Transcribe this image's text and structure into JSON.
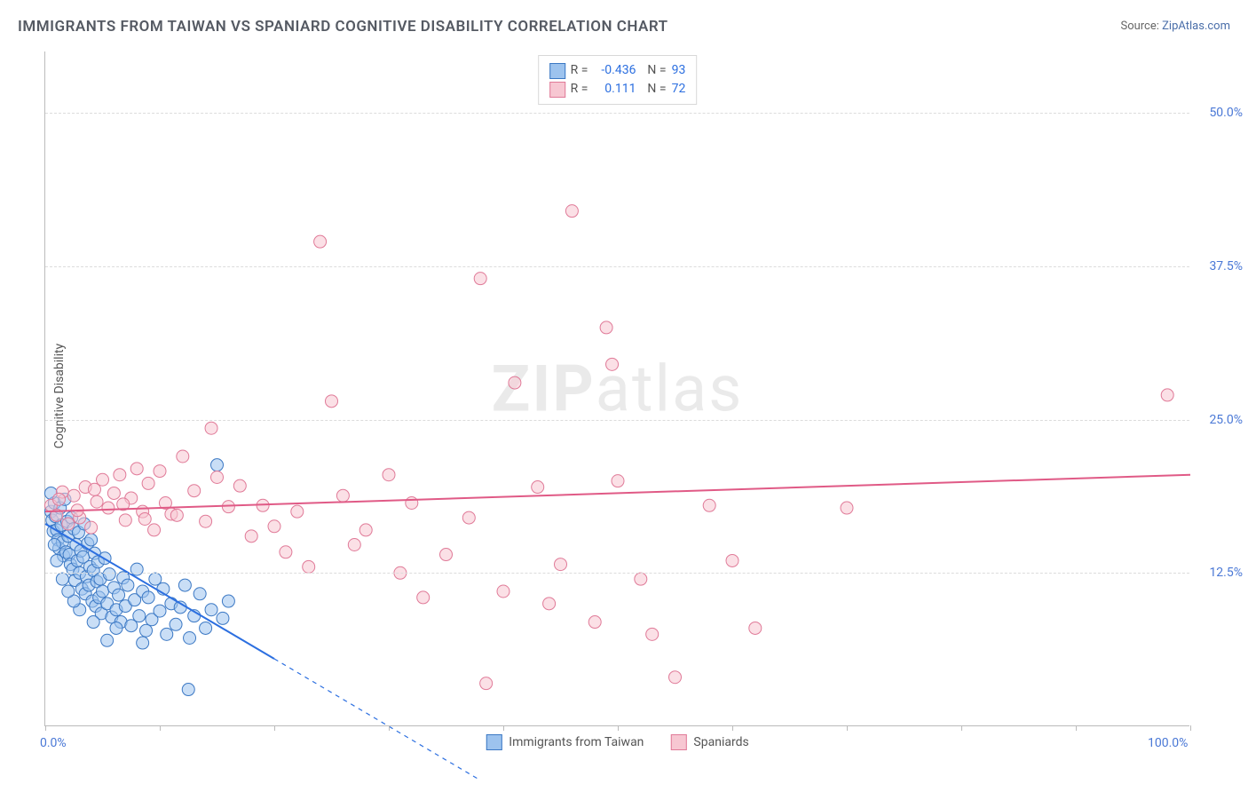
{
  "title": "IMMIGRANTS FROM TAIWAN VS SPANIARD COGNITIVE DISABILITY CORRELATION CHART",
  "source_prefix": "Source: ",
  "source_name": "ZipAtlas.com",
  "ylabel": "Cognitive Disability",
  "watermark_bold": "ZIP",
  "watermark_light": "atlas",
  "chart": {
    "type": "scatter",
    "background_color": "#ffffff",
    "grid_color": "#dcdcdc",
    "axis_color": "#bbbbbb",
    "tick_label_color": "#4a78d6",
    "xlim": [
      0,
      100
    ],
    "ylim": [
      0,
      55
    ],
    "xtick_positions": [
      0,
      10,
      20,
      30,
      40,
      50,
      60,
      70,
      80,
      90,
      100
    ],
    "xtick_labels": {
      "0": "0.0%",
      "100": "100.0%"
    },
    "ytick_positions": [
      12.5,
      25.0,
      37.5,
      50.0
    ],
    "ytick_labels": [
      "12.5%",
      "25.0%",
      "37.5%",
      "50.0%"
    ],
    "marker_radius": 7,
    "marker_opacity": 0.55,
    "series": [
      {
        "name": "Immigrants from Taiwan",
        "fill_color": "#9dc3ee",
        "stroke_color": "#3b78c4",
        "R": "-0.436",
        "N": "93",
        "trend": {
          "x1": 0,
          "y1": 16.5,
          "x2": 20,
          "y2": 5.5,
          "extrapolate_to_x": 38,
          "color": "#2c6fe0",
          "width": 2
        },
        "points": [
          [
            0.5,
            17.5
          ],
          [
            0.6,
            16.8
          ],
          [
            0.7,
            15.9
          ],
          [
            0.8,
            18.2
          ],
          [
            0.9,
            17.1
          ],
          [
            1.0,
            16.0
          ],
          [
            1.1,
            15.2
          ],
          [
            1.2,
            14.5
          ],
          [
            1.3,
            17.8
          ],
          [
            1.4,
            16.4
          ],
          [
            1.5,
            15.0
          ],
          [
            1.6,
            13.9
          ],
          [
            1.7,
            18.5
          ],
          [
            1.8,
            14.2
          ],
          [
            1.9,
            16.7
          ],
          [
            2.0,
            15.5
          ],
          [
            2.1,
            14.0
          ],
          [
            2.2,
            13.2
          ],
          [
            2.3,
            17.0
          ],
          [
            2.4,
            12.8
          ],
          [
            2.5,
            16.1
          ],
          [
            2.6,
            11.9
          ],
          [
            2.7,
            14.8
          ],
          [
            2.8,
            13.5
          ],
          [
            2.9,
            15.8
          ],
          [
            3.0,
            12.5
          ],
          [
            3.1,
            14.3
          ],
          [
            3.2,
            11.2
          ],
          [
            3.3,
            13.8
          ],
          [
            3.4,
            16.5
          ],
          [
            3.5,
            10.8
          ],
          [
            3.6,
            12.2
          ],
          [
            3.7,
            14.9
          ],
          [
            3.8,
            11.5
          ],
          [
            3.9,
            13.0
          ],
          [
            4.0,
            15.2
          ],
          [
            4.1,
            10.2
          ],
          [
            4.2,
            12.7
          ],
          [
            4.3,
            14.1
          ],
          [
            4.4,
            9.8
          ],
          [
            4.5,
            11.8
          ],
          [
            4.6,
            13.4
          ],
          [
            4.7,
            10.5
          ],
          [
            4.8,
            12.0
          ],
          [
            4.9,
            9.2
          ],
          [
            5.0,
            11.0
          ],
          [
            5.2,
            13.7
          ],
          [
            5.4,
            10.0
          ],
          [
            5.6,
            12.4
          ],
          [
            5.8,
            8.9
          ],
          [
            6.0,
            11.3
          ],
          [
            6.2,
            9.5
          ],
          [
            6.4,
            10.7
          ],
          [
            6.6,
            8.5
          ],
          [
            6.8,
            12.1
          ],
          [
            7.0,
            9.8
          ],
          [
            7.2,
            11.5
          ],
          [
            7.5,
            8.2
          ],
          [
            7.8,
            10.3
          ],
          [
            8.0,
            12.8
          ],
          [
            8.2,
            9.0
          ],
          [
            8.5,
            11.0
          ],
          [
            8.8,
            7.8
          ],
          [
            9.0,
            10.5
          ],
          [
            9.3,
            8.7
          ],
          [
            9.6,
            12.0
          ],
          [
            10.0,
            9.4
          ],
          [
            10.3,
            11.2
          ],
          [
            10.6,
            7.5
          ],
          [
            11.0,
            10.0
          ],
          [
            11.4,
            8.3
          ],
          [
            11.8,
            9.7
          ],
          [
            12.2,
            11.5
          ],
          [
            12.6,
            7.2
          ],
          [
            13.0,
            9.0
          ],
          [
            13.5,
            10.8
          ],
          [
            14.0,
            8.0
          ],
          [
            14.5,
            9.5
          ],
          [
            15.0,
            21.3
          ],
          [
            5.4,
            7.0
          ],
          [
            8.5,
            6.8
          ],
          [
            6.2,
            8.0
          ],
          [
            15.5,
            8.8
          ],
          [
            16.0,
            10.2
          ],
          [
            4.2,
            8.5
          ],
          [
            3.0,
            9.5
          ],
          [
            2.5,
            10.2
          ],
          [
            2.0,
            11.0
          ],
          [
            1.5,
            12.0
          ],
          [
            1.0,
            13.5
          ],
          [
            0.8,
            14.8
          ],
          [
            12.5,
            3.0
          ],
          [
            0.5,
            19.0
          ]
        ]
      },
      {
        "name": "Spaniards",
        "fill_color": "#f7c7d2",
        "stroke_color": "#e07a98",
        "R": "0.111",
        "N": "72",
        "trend": {
          "x1": 0,
          "y1": 17.5,
          "x2": 100,
          "y2": 20.5,
          "color": "#e05a86",
          "width": 2
        },
        "points": [
          [
            0.5,
            18.0
          ],
          [
            1.0,
            17.2
          ],
          [
            1.5,
            19.1
          ],
          [
            2.0,
            16.5
          ],
          [
            2.5,
            18.8
          ],
          [
            3.0,
            17.0
          ],
          [
            3.5,
            19.5
          ],
          [
            4.0,
            16.2
          ],
          [
            4.5,
            18.3
          ],
          [
            5.0,
            20.1
          ],
          [
            5.5,
            17.8
          ],
          [
            6.0,
            19.0
          ],
          [
            6.5,
            20.5
          ],
          [
            7.0,
            16.8
          ],
          [
            7.5,
            18.6
          ],
          [
            8.0,
            21.0
          ],
          [
            8.5,
            17.5
          ],
          [
            9.0,
            19.8
          ],
          [
            9.5,
            16.0
          ],
          [
            10.0,
            20.8
          ],
          [
            10.5,
            18.2
          ],
          [
            11.0,
            17.3
          ],
          [
            12.0,
            22.0
          ],
          [
            13.0,
            19.2
          ],
          [
            14.0,
            16.7
          ],
          [
            14.5,
            24.3
          ],
          [
            15.0,
            20.3
          ],
          [
            16.0,
            17.9
          ],
          [
            17.0,
            19.6
          ],
          [
            18.0,
            15.5
          ],
          [
            19.0,
            18.0
          ],
          [
            20.0,
            16.3
          ],
          [
            21.0,
            14.2
          ],
          [
            22.0,
            17.5
          ],
          [
            23.0,
            13.0
          ],
          [
            24.0,
            39.5
          ],
          [
            25.0,
            26.5
          ],
          [
            26.0,
            18.8
          ],
          [
            27.0,
            14.8
          ],
          [
            28.0,
            16.0
          ],
          [
            30.0,
            20.5
          ],
          [
            31.0,
            12.5
          ],
          [
            32.0,
            18.2
          ],
          [
            33.0,
            10.5
          ],
          [
            35.0,
            14.0
          ],
          [
            37.0,
            17.0
          ],
          [
            38.0,
            36.5
          ],
          [
            38.5,
            3.5
          ],
          [
            40.0,
            11.0
          ],
          [
            41.0,
            28.0
          ],
          [
            43.0,
            19.5
          ],
          [
            44.0,
            10.0
          ],
          [
            45.0,
            13.2
          ],
          [
            46.0,
            42.0
          ],
          [
            48.0,
            8.5
          ],
          [
            49.0,
            32.5
          ],
          [
            49.5,
            29.5
          ],
          [
            50.0,
            20.0
          ],
          [
            52.0,
            12.0
          ],
          [
            53.0,
            7.5
          ],
          [
            55.0,
            4.0
          ],
          [
            58.0,
            18.0
          ],
          [
            60.0,
            13.5
          ],
          [
            62.0,
            8.0
          ],
          [
            70.0,
            17.8
          ],
          [
            98.0,
            27.0
          ],
          [
            1.2,
            18.5
          ],
          [
            2.8,
            17.6
          ],
          [
            4.3,
            19.3
          ],
          [
            6.8,
            18.1
          ],
          [
            8.7,
            16.9
          ],
          [
            11.5,
            17.2
          ]
        ]
      }
    ],
    "legend_bottom": [
      "Immigrants from Taiwan",
      "Spaniards"
    ]
  }
}
